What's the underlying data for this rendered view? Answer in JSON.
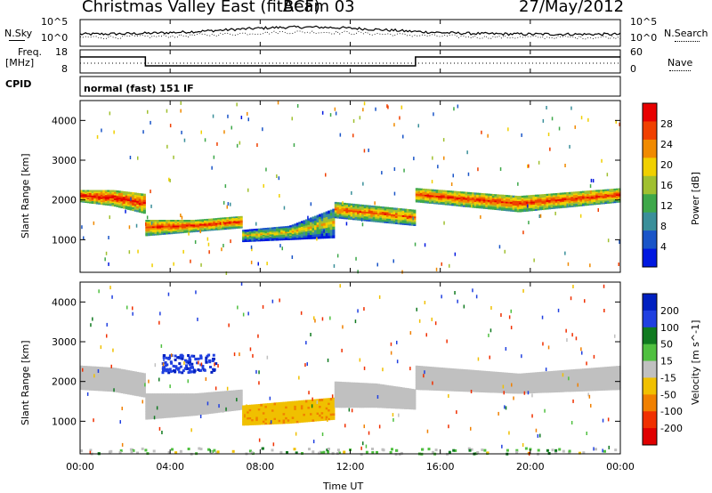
{
  "header": {
    "title": "Christmas Valley East (fitACF)",
    "beam": "Beam 03",
    "date": "27/May/2012"
  },
  "summary_panels": {
    "nsky_label": "N.Sky",
    "nsky_ticks": [
      "10^5",
      "10^0"
    ],
    "nsearch_label": "N.Search",
    "nsearch_ticks": [
      "10^5",
      "10^0"
    ],
    "freq_label_1": "Freq.",
    "freq_label_2": "[MHz]",
    "freq_ticks": [
      "18",
      "8"
    ],
    "nave_label": "Nave",
    "nave_ticks": [
      "60",
      "0"
    ],
    "cpid_label": "CPID",
    "cpid_value": "normal (fast) 151 IF"
  },
  "chart_data": [
    {
      "type": "heatmap",
      "name": "power",
      "ylabel": "Slant Range [km]",
      "yticks": [
        1000,
        2000,
        3000,
        4000
      ],
      "ylim": [
        180,
        4500
      ],
      "xlim": [
        0,
        24
      ],
      "xticks_hours": [
        0,
        4,
        8,
        12,
        16,
        20,
        24
      ],
      "colorbar": {
        "label": "Power [dB]",
        "ticks": [
          "4",
          "8",
          "12",
          "16",
          "20",
          "24",
          "28"
        ],
        "colors": [
          "#0018e0",
          "#1a55c8",
          "#3a8f9a",
          "#3ea84a",
          "#a0c030",
          "#f0d000",
          "#f08a00",
          "#f04000",
          "#e80000"
        ]
      },
      "bands": [
        {
          "t0": 0,
          "t1": 2.9,
          "r": [
            1950,
            2250,
            1850,
            2250,
            1650,
            2150
          ],
          "v": 22
        },
        {
          "t0": 2.9,
          "t1": 7.2,
          "r": [
            1100,
            1500,
            1200,
            1500,
            1300,
            1600
          ],
          "v": 20
        },
        {
          "t0": 7.2,
          "t1": 11.3,
          "r": [
            950,
            1250,
            1000,
            1350,
            1050,
            1800
          ],
          "v": 12
        },
        {
          "t0": 11.3,
          "t1": 14.9,
          "r": [
            1550,
            1950,
            1450,
            1850,
            1350,
            1750
          ],
          "v": 18
        },
        {
          "t0": 14.9,
          "t1": 24,
          "r": [
            1950,
            2300,
            1700,
            2100,
            1950,
            2300
          ],
          "v": 20
        }
      ]
    },
    {
      "type": "heatmap",
      "name": "velocity",
      "ylabel": "Slant Range [km]",
      "yticks": [
        1000,
        2000,
        3000,
        4000
      ],
      "ylim": [
        180,
        4500
      ],
      "xlim": [
        0,
        24
      ],
      "xticks_hours": [
        0,
        4,
        8,
        12,
        16,
        20,
        24
      ],
      "colorbar": {
        "label": "Velocity [m s^-1]",
        "ticks": [
          "200",
          "100",
          "50",
          "15",
          "-15",
          "-50",
          "-100",
          "-200"
        ],
        "colors": [
          "#0020c0",
          "#2040e0",
          "#107a20",
          "#50c040",
          "#c0c0c0",
          "#f0c000",
          "#f08000",
          "#f03000",
          "#e00000"
        ]
      },
      "bands": [
        {
          "t0": 0,
          "t1": 2.9,
          "r": [
            1800,
            2400,
            1750,
            2350,
            1600,
            2200
          ],
          "v": 0
        },
        {
          "t0": 2.9,
          "t1": 7.2,
          "r": [
            1050,
            1700,
            1150,
            1700,
            1300,
            1800
          ],
          "v": 0
        },
        {
          "t0": 7.2,
          "t1": 11.3,
          "r": [
            900,
            1400,
            950,
            1500,
            1050,
            1600
          ],
          "v": -40
        },
        {
          "t0": 11.3,
          "t1": 14.9,
          "r": [
            1350,
            2000,
            1350,
            1950,
            1300,
            1800
          ],
          "v": 0
        },
        {
          "t0": 14.9,
          "t1": 24,
          "r": [
            1800,
            2400,
            1700,
            2200,
            1800,
            2400
          ],
          "v": 0
        }
      ],
      "features": [
        {
          "t0": 3.6,
          "t1": 6.0,
          "r": [
            2250,
            2700
          ],
          "v": 180
        },
        {
          "t0": 0,
          "t1": 24,
          "r": [
            200,
            350
          ],
          "v": 20
        }
      ]
    }
  ],
  "xaxis": {
    "label": "Time UT",
    "tick_labels": [
      "00:00",
      "04:00",
      "08:00",
      "12:00",
      "16:00",
      "20:00",
      "00:00"
    ]
  }
}
